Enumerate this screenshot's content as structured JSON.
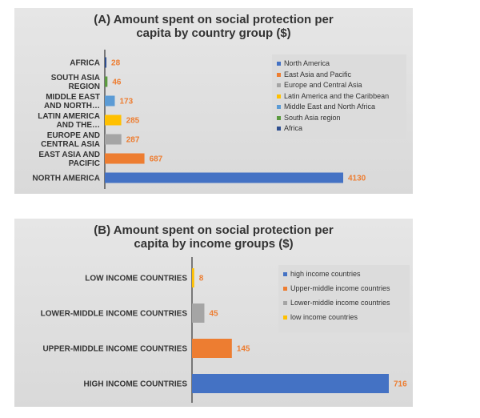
{
  "chart_data": [
    {
      "type": "bar",
      "orientation": "horizontal",
      "title": "(A) Amount spent on social protection per capita by country group ($)",
      "title_lines": [
        "(A) Amount spent on social protection per",
        "capita by country group ($)"
      ],
      "categories": [
        "AFRICA",
        "SOUTH ASIA REGION",
        "MIDDLE EAST AND NORTH…",
        "LATIN AMERICA AND THE…",
        "EUROPE AND CENTRAL ASIA",
        "EAST ASIA AND PACIFIC",
        "NORTH AMERICA"
      ],
      "category_lines": [
        [
          "AFRICA"
        ],
        [
          "SOUTH ASIA",
          "REGION"
        ],
        [
          "MIDDLE EAST",
          "AND NORTH…"
        ],
        [
          "LATIN AMERICA",
          "AND THE…"
        ],
        [
          "EUROPE AND",
          "CENTRAL ASIA"
        ],
        [
          "EAST ASIA AND",
          "PACIFIC"
        ],
        [
          "NORTH AMERICA"
        ]
      ],
      "values": [
        28,
        46,
        173,
        285,
        287,
        687,
        4130
      ],
      "colors": [
        "#2f4f8f",
        "#5b9a3f",
        "#5b9bd5",
        "#ffc000",
        "#a5a5a5",
        "#ed7d31",
        "#4472c4"
      ],
      "xlim": [
        0,
        4130
      ],
      "legend": {
        "placement": "right",
        "entries": [
          {
            "label": "North America",
            "color": "#4472c4"
          },
          {
            "label": "East Asia and Pacific",
            "color": "#ed7d31"
          },
          {
            "label": "Europe and Central Asia",
            "color": "#a5a5a5"
          },
          {
            "label": "Latin America and the Caribbean",
            "color": "#ffc000"
          },
          {
            "label": "Middle East and North Africa",
            "color": "#5b9bd5"
          },
          {
            "label": "South Asia region",
            "color": "#5b9a3f"
          },
          {
            "label": "Africa",
            "color": "#2f4f8f"
          }
        ]
      },
      "grid": false,
      "label_color": "#ed7d31"
    },
    {
      "type": "bar",
      "orientation": "horizontal",
      "title": "(B) Amount spent on social protection per capita by income groups ($)",
      "title_lines": [
        "(B) Amount spent on social protection per",
        "capita by income groups ($)"
      ],
      "categories": [
        "LOW INCOME COUNTRIES",
        "LOWER-MIDDLE INCOME COUNTRIES",
        "UPPER-MIDDLE INCOME COUNTRIES",
        "HIGH INCOME COUNTRIES"
      ],
      "category_lines": [
        [
          "LOW INCOME COUNTRIES"
        ],
        [
          "LOWER-MIDDLE INCOME COUNTRIES"
        ],
        [
          "UPPER-MIDDLE INCOME COUNTRIES"
        ],
        [
          "HIGH INCOME COUNTRIES"
        ]
      ],
      "values": [
        8,
        45,
        145,
        716
      ],
      "colors": [
        "#ffc000",
        "#a5a5a5",
        "#ed7d31",
        "#4472c4"
      ],
      "xlim": [
        0,
        716
      ],
      "legend": {
        "placement": "right",
        "entries": [
          {
            "label": "high income countries",
            "color": "#4472c4"
          },
          {
            "label": "Upper-middle income countries",
            "color": "#ed7d31"
          },
          {
            "label": "Lower-middle income countries",
            "color": "#a5a5a5"
          },
          {
            "label": "low income countries",
            "color": "#ffc000"
          }
        ]
      },
      "grid": false,
      "label_color": "#ed7d31"
    }
  ]
}
